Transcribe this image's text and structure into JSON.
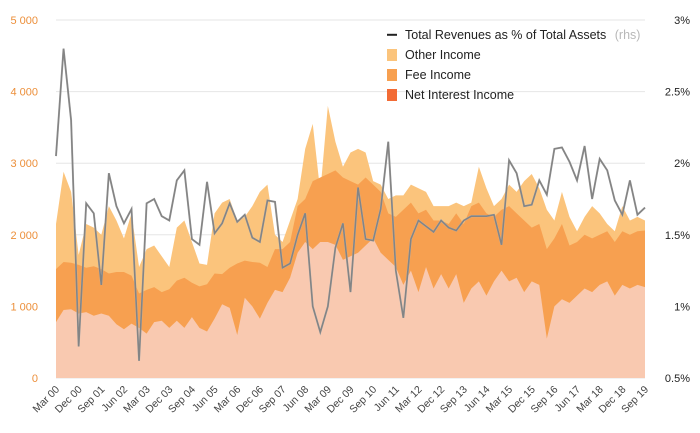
{
  "chart_data": {
    "type": "area",
    "title": "",
    "xlabel": "",
    "ylabel": "",
    "ylim": [
      0,
      5000
    ],
    "y_ticks": [
      "0",
      "1 000",
      "2 000",
      "3 000",
      "4 000",
      "5 000"
    ],
    "y2lim": [
      0.5,
      3.0
    ],
    "y2_ticks": [
      "0.5%",
      "1%",
      "1.5%",
      "2%",
      "2.5%",
      "3%"
    ],
    "x_labels": [
      "Mar 00",
      "Dec 00",
      "Sep 01",
      "Jun 02",
      "Mar 03",
      "Dec 03",
      "Sep 04",
      "Jun 05",
      "Mar 06",
      "Dec 06",
      "Sep 07",
      "Jun 08",
      "Mar 09",
      "Dec 09",
      "Sep 10",
      "Jun 11",
      "Mar 12",
      "Dec 12",
      "Sep 13",
      "Jun 14",
      "Mar 15",
      "Dec 15",
      "Sep 16",
      "Jun 17",
      "Mar 18",
      "Dec 18",
      "Sep 19"
    ],
    "colors": {
      "net_interest": "#f9c9b0",
      "fee": "#f7a050",
      "other": "#fbc47c",
      "line_dark": "#555555",
      "line_light": "#bdbdbd"
    },
    "legend": [
      {
        "label": "Total Revenues as % of Total Assets",
        "suffix": "(rhs)",
        "swatch": "line"
      },
      {
        "label": "Other Income",
        "suffix": "",
        "swatch": "other"
      },
      {
        "label": "Fee Income",
        "suffix": "",
        "swatch": "fee"
      },
      {
        "label": "Net Interest Income",
        "suffix": "",
        "swatch": "net_interest"
      }
    ],
    "series": [
      {
        "name": "Net Interest Income",
        "values": [
          780,
          950,
          960,
          900,
          920,
          870,
          900,
          870,
          750,
          680,
          760,
          700,
          620,
          780,
          800,
          700,
          800,
          700,
          850,
          700,
          650,
          830,
          1030,
          980,
          600,
          1120,
          1000,
          830,
          1050,
          1230,
          1200,
          1400,
          1750,
          1900,
          1800,
          1900,
          1900,
          1860,
          1650,
          1700,
          1750,
          1850,
          1950,
          1750,
          1650,
          1550,
          1300,
          1500,
          1200,
          1550,
          1250,
          1450,
          1250,
          1450,
          1050,
          1250,
          1350,
          1150,
          1350,
          1500,
          1350,
          1400,
          1200,
          1350,
          1300,
          550,
          1000,
          1100,
          1050,
          1150,
          1250,
          1200,
          1300,
          1350,
          1150,
          1300,
          1250,
          1300,
          1270
        ]
      },
      {
        "name": "Fee Income",
        "values": [
          1520,
          1620,
          1610,
          1580,
          1540,
          1560,
          1520,
          1460,
          1480,
          1480,
          1430,
          1180,
          1230,
          1270,
          1200,
          1240,
          1360,
          1400,
          1330,
          1280,
          1310,
          1460,
          1450,
          1540,
          1600,
          1640,
          1620,
          1610,
          1550,
          1800,
          1800,
          1900,
          2400,
          2500,
          2750,
          2800,
          2850,
          2900,
          2800,
          2750,
          2700,
          2800,
          2700,
          2600,
          2300,
          2250,
          2350,
          2450,
          2300,
          2350,
          2200,
          2200,
          2150,
          2300,
          2150,
          2400,
          2450,
          2300,
          2250,
          2350,
          2400,
          2300,
          2200,
          2100,
          2150,
          1800,
          1950,
          2150,
          1850,
          1900,
          2000,
          1950,
          2000,
          2050,
          1900,
          2050,
          2000,
          2050,
          2060
        ]
      },
      {
        "name": "Other Income",
        "values": [
          2150,
          2880,
          2600,
          1720,
          2150,
          2100,
          2000,
          2400,
          2200,
          1950,
          2300,
          1550,
          1800,
          1850,
          1700,
          1550,
          2100,
          2200,
          1900,
          1600,
          1580,
          2300,
          2450,
          2500,
          2200,
          2250,
          2400,
          2600,
          2700,
          2000,
          1900,
          2200,
          2500,
          3200,
          3550,
          2600,
          3800,
          3300,
          2950,
          3150,
          3200,
          3150,
          2750,
          2700,
          2500,
          2550,
          2550,
          2700,
          2650,
          2600,
          2400,
          2400,
          2400,
          2450,
          2400,
          2450,
          2950,
          2650,
          2400,
          2500,
          2700,
          2600,
          2750,
          2850,
          2650,
          2350,
          2200,
          2600,
          2250,
          2050,
          2250,
          2400,
          2300,
          2150,
          2050,
          2400,
          2200,
          2250,
          2200
        ]
      },
      {
        "name": "Total Revenues as % of Total Assets (rhs)",
        "values": [
          2.05,
          2.8,
          2.3,
          0.72,
          1.72,
          1.65,
          1.15,
          1.93,
          1.7,
          1.58,
          1.68,
          0.62,
          1.72,
          1.75,
          1.63,
          1.6,
          1.88,
          1.95,
          1.47,
          1.43,
          1.87,
          1.51,
          1.58,
          1.72,
          1.59,
          1.64,
          1.48,
          1.45,
          1.74,
          1.73,
          1.27,
          1.3,
          1.5,
          1.65,
          1.0,
          0.82,
          1.0,
          1.41,
          1.58,
          1.1,
          1.83,
          1.47,
          1.46,
          1.68,
          2.15,
          1.25,
          0.92,
          1.47,
          1.6,
          1.56,
          1.52,
          1.6,
          1.55,
          1.53,
          1.6,
          1.63,
          1.63,
          1.63,
          1.64,
          1.43,
          2.02,
          1.93,
          1.7,
          1.71,
          1.88,
          1.78,
          2.1,
          2.11,
          2.01,
          1.88,
          2.12,
          1.75,
          2.03,
          1.95,
          1.74,
          1.64,
          1.88,
          1.64,
          1.69
        ]
      }
    ]
  }
}
